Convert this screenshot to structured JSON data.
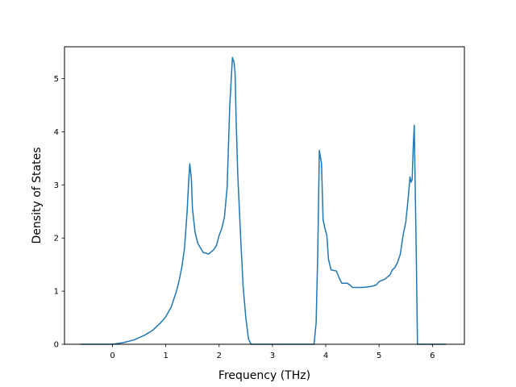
{
  "chart_data": {
    "type": "line",
    "xlabel": "Frequency (THz)",
    "ylabel": "Density of States",
    "xlim": [
      -0.9,
      6.6
    ],
    "ylim": [
      0,
      5.6
    ],
    "x_ticks": [
      0,
      1,
      2,
      3,
      4,
      5,
      6
    ],
    "y_ticks": [
      0,
      1,
      2,
      3,
      4,
      5
    ],
    "grid": false,
    "colors": {
      "line": "#1f77b4",
      "axes": "#000000",
      "background": "#ffffff"
    },
    "series": [
      {
        "x": [
          -0.6,
          -0.3,
          0.0,
          0.2,
          0.4,
          0.6,
          0.75,
          0.9,
          1.0,
          1.1,
          1.2,
          1.25,
          1.3,
          1.35,
          1.4,
          1.43,
          1.45,
          1.48,
          1.5,
          1.55,
          1.6,
          1.7,
          1.8,
          1.9,
          1.95,
          2.0,
          2.05,
          2.1,
          2.15,
          2.2,
          2.25,
          2.28,
          2.3,
          2.32,
          2.35,
          2.4,
          2.45,
          2.5,
          2.55,
          2.6,
          3.0,
          3.5,
          3.7,
          3.78,
          3.82,
          3.85,
          3.88,
          3.92,
          3.95,
          3.98,
          4.02,
          4.05,
          4.1,
          4.2,
          4.25,
          4.3,
          4.4,
          4.45,
          4.5,
          4.6,
          4.7,
          4.8,
          4.9,
          4.95,
          5.0,
          5.1,
          5.2,
          5.25,
          5.3,
          5.35,
          5.4,
          5.45,
          5.5,
          5.55,
          5.58,
          5.6,
          5.62,
          5.64,
          5.66,
          5.7,
          5.72,
          5.8,
          6.0,
          6.25
        ],
        "y": [
          0,
          0,
          0,
          0.03,
          0.08,
          0.17,
          0.26,
          0.4,
          0.52,
          0.7,
          1.0,
          1.2,
          1.45,
          1.8,
          2.5,
          3.1,
          3.4,
          3.1,
          2.55,
          2.1,
          1.9,
          1.73,
          1.7,
          1.78,
          1.86,
          2.05,
          2.18,
          2.4,
          2.95,
          4.5,
          5.4,
          5.3,
          5.1,
          4.2,
          3.2,
          2.1,
          1.1,
          0.5,
          0.1,
          0,
          0,
          0,
          0,
          0,
          0.4,
          1.7,
          3.65,
          3.4,
          2.35,
          2.2,
          2.05,
          1.6,
          1.4,
          1.38,
          1.25,
          1.15,
          1.15,
          1.12,
          1.07,
          1.07,
          1.07,
          1.08,
          1.1,
          1.12,
          1.18,
          1.22,
          1.3,
          1.4,
          1.45,
          1.55,
          1.7,
          2.05,
          2.3,
          2.8,
          3.15,
          3.05,
          3.1,
          3.7,
          4.12,
          1.5,
          0,
          0,
          0,
          0
        ]
      }
    ]
  }
}
